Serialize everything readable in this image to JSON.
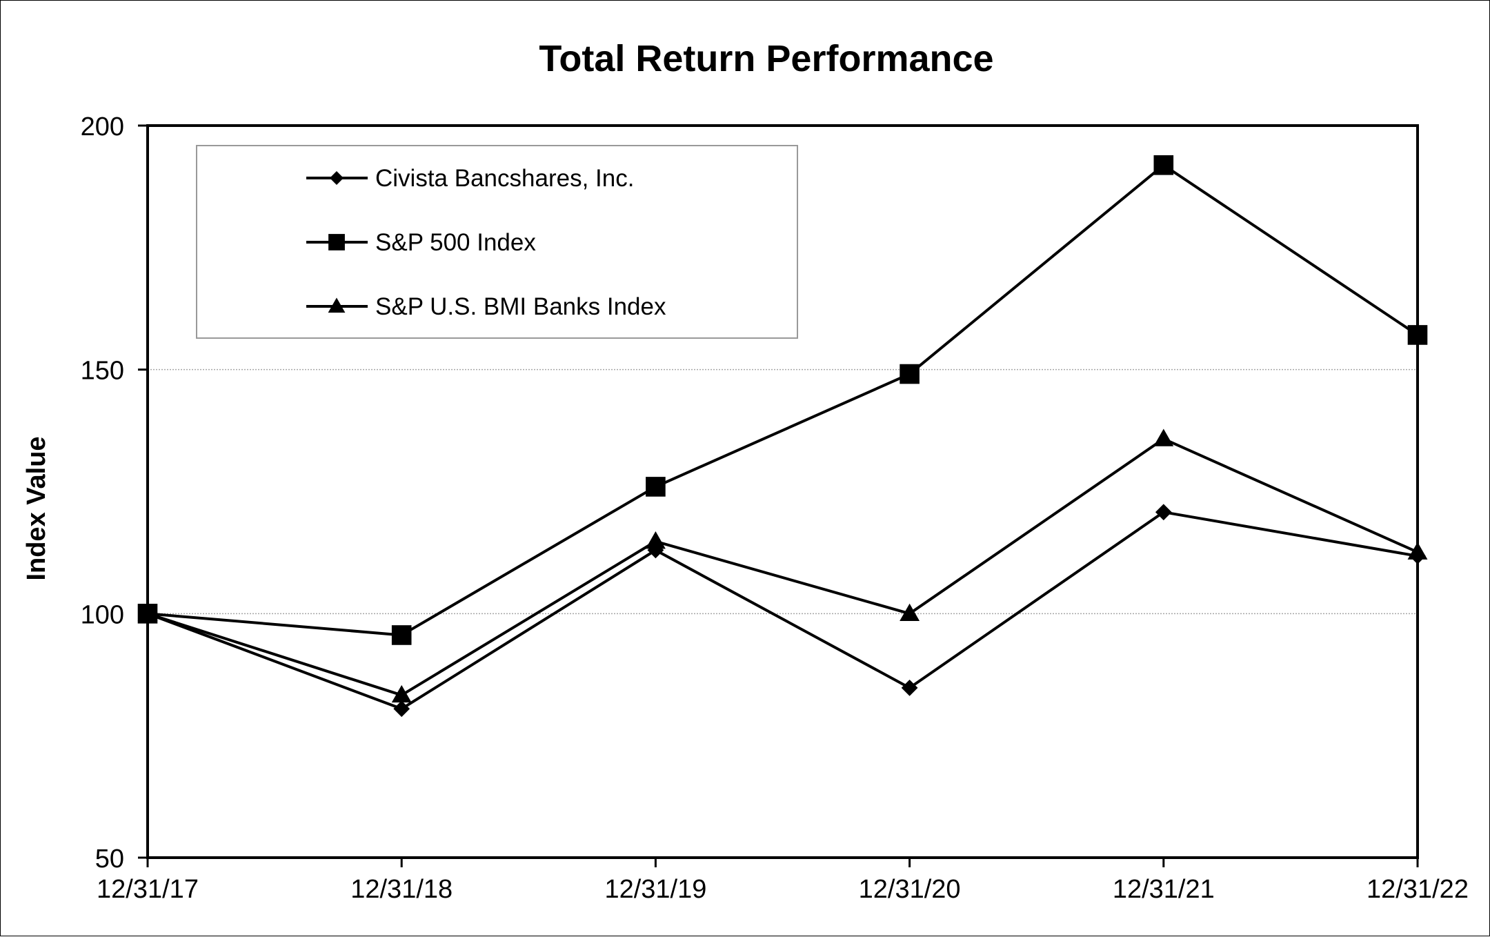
{
  "chart_data": {
    "type": "line",
    "title": "Total Return Performance",
    "xlabel": "",
    "ylabel": "Index Value",
    "categories": [
      "12/31/17",
      "12/31/18",
      "12/31/19",
      "12/31/20",
      "12/31/21",
      "12/31/22"
    ],
    "ylim": [
      50,
      200
    ],
    "yticks": [
      "50",
      "100",
      "150",
      "200"
    ],
    "grid": "horizontal dotted",
    "legend_position": "top-left",
    "series": [
      {
        "name": "Civista Bancshares, Inc.",
        "marker": "diamond",
        "values": [
          100,
          80.5,
          113,
          84.8,
          120.8,
          111.8
        ]
      },
      {
        "name": "S&P 500 Index",
        "marker": "square",
        "values": [
          100,
          95.6,
          126,
          149.1,
          191.9,
          157.1
        ]
      },
      {
        "name": "S&P U.S. BMI Banks Index",
        "marker": "triangle",
        "values": [
          100,
          83.3,
          114.8,
          100,
          135.8,
          112.6
        ]
      }
    ],
    "colors": {
      "line": "#000000",
      "grid": "#a6a6a6"
    }
  }
}
